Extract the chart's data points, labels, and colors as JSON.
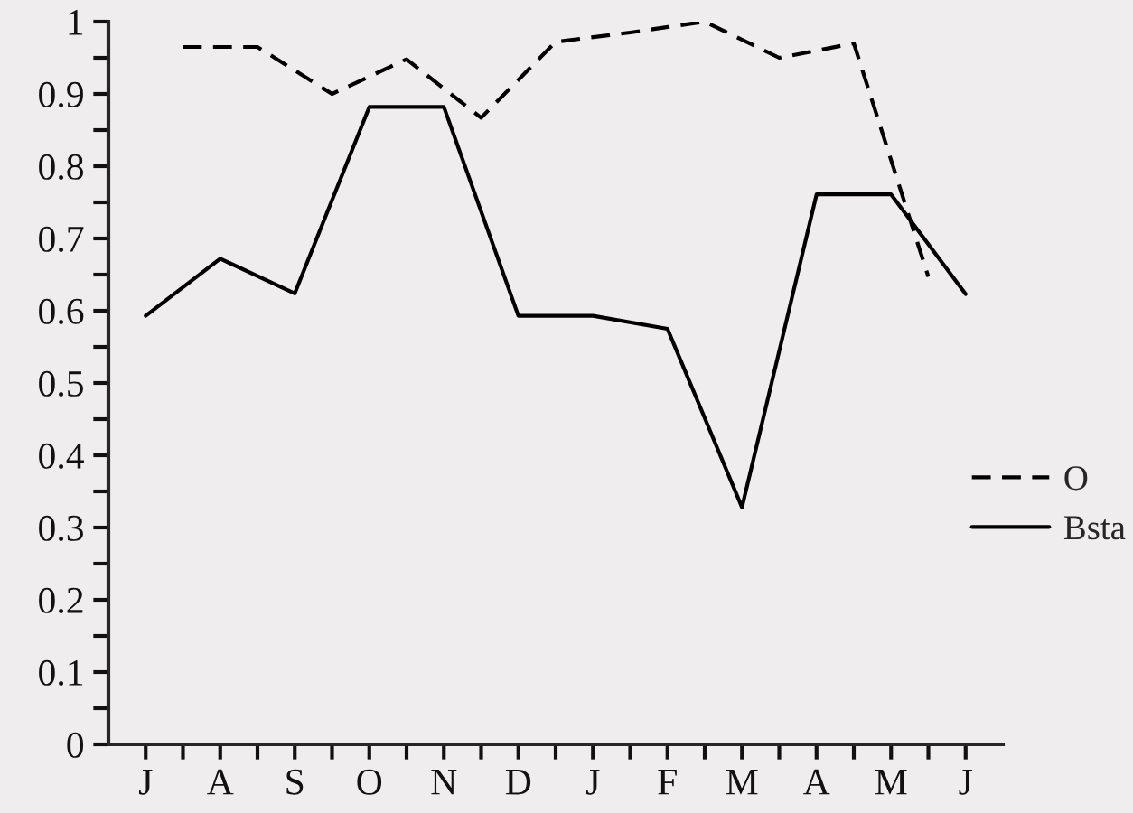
{
  "chart_data": {
    "type": "line",
    "categories": [
      "J",
      null,
      "A",
      null,
      "S",
      null,
      "O",
      null,
      "N",
      null,
      "D",
      null,
      "J",
      null,
      "F",
      null,
      "M",
      null,
      "A",
      null,
      "M",
      null,
      "J"
    ],
    "ylim": [
      0,
      1
    ],
    "yticks": [
      0,
      {
        "value": 0.05,
        "label": null
      },
      0.1,
      {
        "value": 0.15,
        "label": null
      },
      0.2,
      {
        "value": 0.25,
        "label": null
      },
      0.3,
      {
        "value": 0.35,
        "label": null
      },
      0.4,
      {
        "value": 0.45,
        "label": null
      },
      0.5,
      {
        "value": 0.55,
        "label": null
      },
      0.6,
      {
        "value": 0.65,
        "label": null
      },
      0.7,
      {
        "value": 0.75,
        "label": null
      },
      0.8,
      {
        "value": 0.85,
        "label": null
      },
      0.9,
      {
        "value": 0.95,
        "label": null
      },
      1
    ],
    "series": [
      {
        "name": "O",
        "color": "#000000",
        "line_style": "dashed",
        "values": [
          null,
          0.965,
          null,
          0.965,
          null,
          0.9,
          null,
          0.948,
          null,
          0.867,
          null,
          0.972,
          null,
          0.985,
          null,
          1.0,
          null,
          0.95,
          null,
          0.97,
          null,
          0.647,
          null
        ]
      },
      {
        "name": "Bsta",
        "color": "#000000",
        "line_style": "solid",
        "values": [
          0.593,
          null,
          0.672,
          null,
          0.624,
          null,
          0.882,
          null,
          0.882,
          null,
          0.593,
          null,
          0.593,
          null,
          0.575,
          null,
          0.328,
          null,
          0.761,
          null,
          0.761,
          null,
          0.623
        ]
      }
    ],
    "grid": false,
    "legend": "right"
  }
}
